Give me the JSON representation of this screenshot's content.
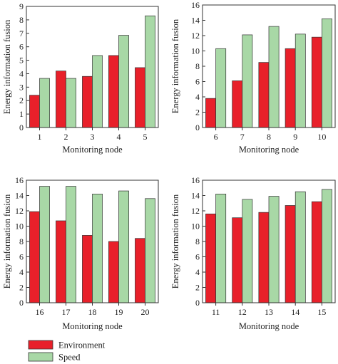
{
  "colors": {
    "environment": "#e8202a",
    "speed": "#a8d8a6",
    "stroke": "#333333"
  },
  "legend": [
    {
      "name": "Environment",
      "color": "#e8202a"
    },
    {
      "name": "Speed",
      "color": "#a8d8a6"
    }
  ],
  "chart_data": [
    {
      "type": "bar",
      "categories": [
        "1",
        "2",
        "3",
        "4",
        "5"
      ],
      "series": [
        {
          "name": "Environment",
          "values": [
            2.4,
            4.2,
            3.8,
            5.35,
            4.45
          ]
        },
        {
          "name": "Speed",
          "values": [
            3.65,
            3.65,
            5.35,
            6.85,
            8.3
          ]
        }
      ],
      "xlabel": "Monitoring node",
      "ylabel": "Energy information fusion",
      "ylim": [
        0,
        9
      ],
      "yticks": [
        0,
        1,
        2,
        3,
        4,
        5,
        6,
        7,
        8,
        9
      ]
    },
    {
      "type": "bar",
      "categories": [
        "6",
        "7",
        "8",
        "9",
        "10"
      ],
      "series": [
        {
          "name": "Environment",
          "values": [
            3.8,
            6.1,
            8.5,
            10.3,
            11.8
          ]
        },
        {
          "name": "Speed",
          "values": [
            10.3,
            12.1,
            13.2,
            12.2,
            14.2
          ]
        }
      ],
      "xlabel": "Monitoring node",
      "ylabel": "Energy information fusion",
      "ylim": [
        0,
        16
      ],
      "yticks": [
        0,
        2,
        4,
        6,
        8,
        10,
        12,
        14,
        16
      ]
    },
    {
      "type": "bar",
      "categories": [
        "16",
        "17",
        "18",
        "19",
        "20"
      ],
      "series": [
        {
          "name": "Environment",
          "values": [
            11.9,
            10.7,
            8.8,
            8.0,
            8.4
          ]
        },
        {
          "name": "Speed",
          "values": [
            15.2,
            15.2,
            14.2,
            14.6,
            13.6
          ]
        }
      ],
      "xlabel": "Monitoring node",
      "ylabel": "Energy information fusion",
      "ylim": [
        0,
        16
      ],
      "yticks": [
        0,
        2,
        4,
        6,
        8,
        10,
        12,
        14,
        16
      ]
    },
    {
      "type": "bar",
      "categories": [
        "11",
        "12",
        "13",
        "14",
        "15"
      ],
      "series": [
        {
          "name": "Environment",
          "values": [
            11.6,
            11.1,
            11.8,
            12.7,
            13.2
          ]
        },
        {
          "name": "Speed",
          "values": [
            14.2,
            13.5,
            13.9,
            14.5,
            14.8
          ]
        }
      ],
      "xlabel": "Monitoring node",
      "ylabel": "Energy information fusion",
      "ylim": [
        0,
        16
      ],
      "yticks": [
        0,
        2,
        4,
        6,
        8,
        10,
        12,
        14,
        16
      ]
    }
  ]
}
